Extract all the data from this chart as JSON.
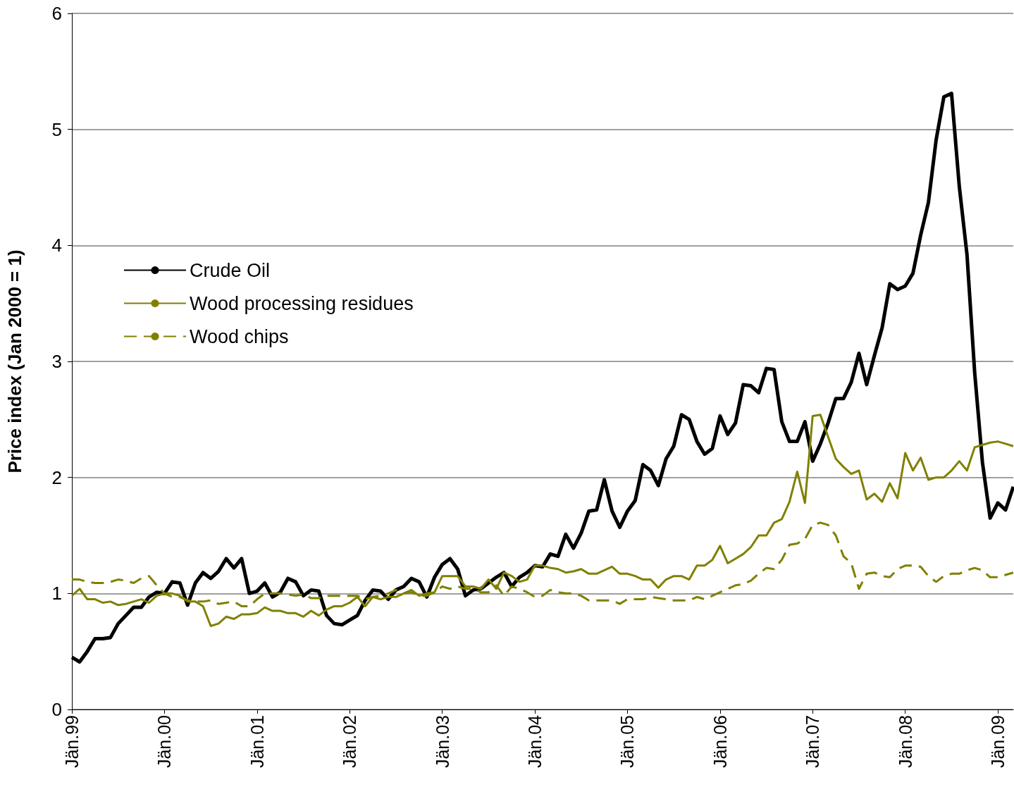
{
  "chart_data": {
    "type": "line",
    "ylabel": "Price index (Jan 2000 = 1)",
    "categories": [
      "Jän.99",
      null,
      null,
      null,
      null,
      null,
      null,
      null,
      null,
      null,
      null,
      null,
      "Jän.00",
      null,
      null,
      null,
      null,
      null,
      null,
      null,
      null,
      null,
      null,
      null,
      "Jän.01",
      null,
      null,
      null,
      null,
      null,
      null,
      null,
      null,
      null,
      null,
      null,
      "Jän.02",
      null,
      null,
      null,
      null,
      null,
      null,
      null,
      null,
      null,
      null,
      null,
      "Jän.03",
      null,
      null,
      null,
      null,
      null,
      null,
      null,
      null,
      null,
      null,
      null,
      "Jän.04",
      null,
      null,
      null,
      null,
      null,
      null,
      null,
      null,
      null,
      null,
      null,
      "Jän.05",
      null,
      null,
      null,
      null,
      null,
      null,
      null,
      null,
      null,
      null,
      null,
      "Jän.06",
      null,
      null,
      null,
      null,
      null,
      null,
      null,
      null,
      null,
      null,
      null,
      "Jän.07",
      null,
      null,
      null,
      null,
      null,
      null,
      null,
      null,
      null,
      null,
      null,
      "Jän.08",
      null,
      null,
      null,
      null,
      null,
      null,
      null,
      null,
      null,
      null,
      null,
      "Jän.09",
      null,
      null
    ],
    "series": [
      {
        "name": "Crude Oil",
        "color": "#000000",
        "line_style": "solid",
        "values": [
          0.45,
          0.41,
          0.5,
          0.61,
          0.61,
          0.62,
          0.74,
          0.81,
          0.88,
          0.88,
          0.97,
          1.01,
          1.0,
          1.1,
          1.09,
          0.9,
          1.09,
          1.18,
          1.13,
          1.19,
          1.3,
          1.22,
          1.3,
          1.0,
          1.02,
          1.09,
          0.97,
          1.01,
          1.13,
          1.1,
          0.98,
          1.03,
          1.02,
          0.81,
          0.74,
          0.73,
          0.77,
          0.81,
          0.94,
          1.03,
          1.02,
          0.95,
          1.03,
          1.06,
          1.13,
          1.1,
          0.97,
          1.14,
          1.25,
          1.3,
          1.21,
          0.98,
          1.03,
          1.04,
          1.09,
          1.14,
          1.18,
          1.06,
          1.14,
          1.18,
          1.24,
          1.23,
          1.34,
          1.32,
          1.51,
          1.39,
          1.52,
          1.71,
          1.72,
          1.98,
          1.71,
          1.57,
          1.71,
          1.8,
          2.11,
          2.06,
          1.93,
          2.16,
          2.27,
          2.54,
          2.5,
          2.31,
          2.2,
          2.25,
          2.53,
          2.37,
          2.47,
          2.8,
          2.79,
          2.73,
          2.94,
          2.93,
          2.48,
          2.31,
          2.31,
          2.48,
          2.14,
          2.29,
          2.47,
          2.68,
          2.68,
          2.82,
          3.07,
          2.8,
          3.05,
          3.29,
          3.67,
          3.62,
          3.65,
          3.76,
          4.09,
          4.37,
          4.91,
          5.28,
          5.31,
          4.51,
          3.92,
          2.9,
          2.13,
          1.65,
          1.78,
          1.72,
          1.92
        ]
      },
      {
        "name": "Wood processing residues",
        "color": "#808000",
        "line_style": "solid",
        "values": [
          0.98,
          1.04,
          0.95,
          0.95,
          0.92,
          0.93,
          0.9,
          0.91,
          0.93,
          0.95,
          0.92,
          0.98,
          1.0,
          1.0,
          0.98,
          0.93,
          0.93,
          0.89,
          0.72,
          0.74,
          0.8,
          0.78,
          0.82,
          0.82,
          0.83,
          0.88,
          0.85,
          0.85,
          0.83,
          0.83,
          0.8,
          0.85,
          0.81,
          0.86,
          0.89,
          0.89,
          0.92,
          0.97,
          0.89,
          0.97,
          0.95,
          0.97,
          0.97,
          1.0,
          1.03,
          0.98,
          1.0,
          1.01,
          1.15,
          1.15,
          1.15,
          1.06,
          1.06,
          1.04,
          1.12,
          1.04,
          1.18,
          1.15,
          1.1,
          1.12,
          1.24,
          1.24,
          1.22,
          1.21,
          1.18,
          1.19,
          1.21,
          1.17,
          1.17,
          1.2,
          1.23,
          1.17,
          1.17,
          1.15,
          1.12,
          1.12,
          1.05,
          1.12,
          1.15,
          1.15,
          1.12,
          1.24,
          1.24,
          1.29,
          1.41,
          1.26,
          1.3,
          1.34,
          1.4,
          1.5,
          1.5,
          1.61,
          1.64,
          1.79,
          2.05,
          1.78,
          2.53,
          2.54,
          2.35,
          2.16,
          2.09,
          2.03,
          2.06,
          1.81,
          1.86,
          1.79,
          1.95,
          1.82,
          2.21,
          2.06,
          2.17,
          1.98,
          2.0,
          2.0,
          2.06,
          2.14,
          2.06,
          2.26,
          2.28,
          2.3,
          2.31,
          2.29,
          2.27
        ]
      },
      {
        "name": "Wood chips",
        "color": "#808000",
        "line_style": "dashed",
        "values": [
          1.12,
          1.12,
          1.1,
          1.09,
          1.09,
          1.1,
          1.12,
          1.11,
          1.09,
          1.13,
          1.15,
          1.07,
          1.0,
          0.97,
          0.97,
          0.94,
          0.93,
          0.93,
          0.94,
          0.91,
          0.92,
          0.93,
          0.89,
          0.89,
          0.95,
          1.0,
          1.0,
          1.0,
          0.99,
          0.98,
          0.99,
          0.96,
          0.96,
          0.98,
          0.98,
          0.98,
          0.98,
          0.98,
          0.95,
          0.97,
          0.98,
          1.0,
          1.03,
          1.0,
          1.01,
          0.98,
          0.98,
          1.01,
          1.06,
          1.04,
          1.06,
          1.04,
          1.04,
          1.01,
          1.01,
          1.07,
          0.98,
          1.06,
          1.04,
          1.01,
          0.97,
          0.98,
          1.03,
          1.01,
          1.0,
          1.0,
          0.98,
          0.94,
          0.94,
          0.94,
          0.94,
          0.91,
          0.95,
          0.95,
          0.95,
          0.97,
          0.96,
          0.95,
          0.94,
          0.94,
          0.94,
          0.97,
          0.95,
          0.98,
          1.01,
          1.04,
          1.07,
          1.08,
          1.11,
          1.17,
          1.22,
          1.21,
          1.29,
          1.42,
          1.43,
          1.47,
          1.59,
          1.61,
          1.59,
          1.5,
          1.32,
          1.26,
          1.04,
          1.17,
          1.18,
          1.15,
          1.14,
          1.21,
          1.24,
          1.24,
          1.23,
          1.15,
          1.1,
          1.15,
          1.17,
          1.17,
          1.2,
          1.22,
          1.2,
          1.14,
          1.14,
          1.16,
          1.18
        ]
      }
    ],
    "ylim": [
      0,
      6
    ],
    "yticks": [
      0,
      1,
      2,
      3,
      4,
      5,
      6
    ],
    "grid": "y",
    "legend": "left",
    "marker": "none"
  }
}
